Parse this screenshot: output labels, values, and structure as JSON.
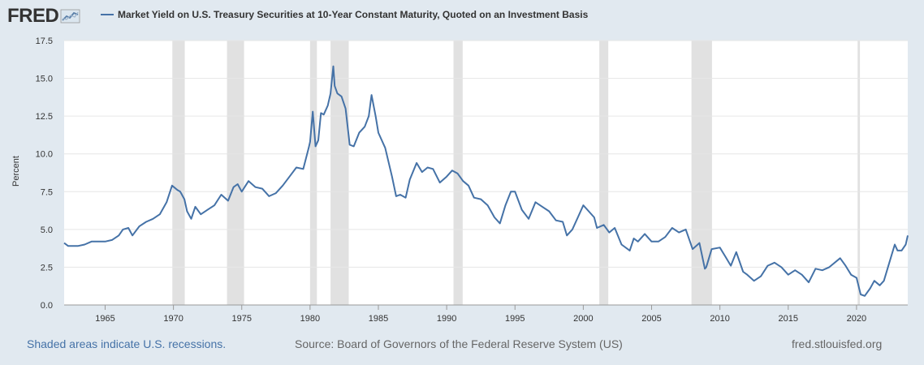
{
  "logo": {
    "text": "FRED",
    "icon": "chart-line-icon"
  },
  "colors": {
    "background": "#e1e9f0",
    "plot": "#ffffff",
    "line": "#4572a7",
    "recession": "#e1e1e1",
    "grid": "#e6e6e6",
    "text": "#333333"
  },
  "footer": {
    "recession_note": "Shaded areas indicate U.S. recessions.",
    "source": "Source: Board of Governors of the Federal Reserve System (US)",
    "site": "fred.stlouisfed.org"
  },
  "chart_data": {
    "type": "line",
    "title": "Market Yield on U.S. Treasury Securities at 10-Year Constant Maturity, Quoted on an Investment Basis",
    "xlabel": "",
    "ylabel": "Percent",
    "xlim": [
      1962.0,
      2023.75
    ],
    "ylim": [
      0,
      17.5
    ],
    "yticks": [
      0.0,
      2.5,
      5.0,
      7.5,
      10.0,
      12.5,
      15.0,
      17.5
    ],
    "ytick_labels": [
      "0.0",
      "2.5",
      "5.0",
      "7.5",
      "10.0",
      "12.5",
      "15.0",
      "17.5"
    ],
    "xticks": [
      1965,
      1970,
      1975,
      1980,
      1985,
      1990,
      1995,
      2000,
      2005,
      2010,
      2015,
      2020
    ],
    "grid": true,
    "legend": "top-left",
    "recessions": [
      [
        1969.92,
        1970.83
      ],
      [
        1973.92,
        1975.17
      ],
      [
        1980.0,
        1980.5
      ],
      [
        1981.5,
        1982.83
      ],
      [
        1990.5,
        1991.17
      ],
      [
        2001.17,
        2001.83
      ],
      [
        2007.92,
        2009.42
      ],
      [
        2020.08,
        2020.25
      ]
    ],
    "series": [
      {
        "name": "Market Yield on U.S. Treasury Securities at 10-Year Constant Maturity, Quoted on an Investment Basis",
        "x": [
          1962.0,
          1962.3,
          1962.7,
          1963.0,
          1963.5,
          1964.0,
          1964.5,
          1965.0,
          1965.5,
          1966.0,
          1966.3,
          1966.7,
          1967.0,
          1967.5,
          1968.0,
          1968.5,
          1969.0,
          1969.5,
          1969.9,
          1970.3,
          1970.5,
          1970.8,
          1971.0,
          1971.3,
          1971.6,
          1972.0,
          1972.5,
          1973.0,
          1973.5,
          1974.0,
          1974.4,
          1974.7,
          1975.0,
          1975.5,
          1976.0,
          1976.5,
          1977.0,
          1977.5,
          1978.0,
          1978.5,
          1979.0,
          1979.5,
          1979.9,
          1980.0,
          1980.2,
          1980.4,
          1980.6,
          1980.8,
          1981.0,
          1981.3,
          1981.5,
          1981.7,
          1981.8,
          1982.0,
          1982.3,
          1982.6,
          1982.9,
          1983.2,
          1983.6,
          1984.0,
          1984.3,
          1984.5,
          1984.8,
          1985.0,
          1985.5,
          1986.0,
          1986.3,
          1986.6,
          1987.0,
          1987.3,
          1987.8,
          1988.2,
          1988.6,
          1989.0,
          1989.5,
          1990.0,
          1990.4,
          1990.8,
          1991.2,
          1991.6,
          1992.0,
          1992.5,
          1993.0,
          1993.5,
          1993.9,
          1994.3,
          1994.7,
          1995.0,
          1995.5,
          1996.0,
          1996.5,
          1997.0,
          1997.5,
          1998.0,
          1998.5,
          1998.8,
          1999.2,
          1999.6,
          2000.0,
          2000.4,
          2000.8,
          2001.0,
          2001.5,
          2001.9,
          2002.3,
          2002.8,
          2003.4,
          2003.7,
          2004.0,
          2004.5,
          2005.0,
          2005.5,
          2006.0,
          2006.5,
          2007.0,
          2007.5,
          2008.0,
          2008.5,
          2008.9,
          2009.0,
          2009.4,
          2010.0,
          2010.4,
          2010.8,
          2011.2,
          2011.7,
          2012.0,
          2012.5,
          2013.0,
          2013.5,
          2014.0,
          2014.5,
          2015.0,
          2015.5,
          2016.0,
          2016.5,
          2017.0,
          2017.5,
          2018.0,
          2018.8,
          2019.2,
          2019.6,
          2020.0,
          2020.3,
          2020.6,
          2021.0,
          2021.3,
          2021.7,
          2022.0,
          2022.4,
          2022.8,
          2023.0,
          2023.3,
          2023.6,
          2023.75
        ],
        "values": [
          4.1,
          3.9,
          3.9,
          3.9,
          4.0,
          4.2,
          4.2,
          4.2,
          4.3,
          4.6,
          5.0,
          5.1,
          4.6,
          5.2,
          5.5,
          5.7,
          6.0,
          6.8,
          7.9,
          7.6,
          7.5,
          7.0,
          6.2,
          5.7,
          6.5,
          6.0,
          6.3,
          6.6,
          7.3,
          6.9,
          7.8,
          8.0,
          7.5,
          8.2,
          7.8,
          7.7,
          7.2,
          7.4,
          7.9,
          8.5,
          9.1,
          9.0,
          10.4,
          10.8,
          12.8,
          10.5,
          10.9,
          12.7,
          12.6,
          13.2,
          14.0,
          15.8,
          14.5,
          14.0,
          13.8,
          13.0,
          10.6,
          10.5,
          11.4,
          11.8,
          12.5,
          13.9,
          12.5,
          11.4,
          10.4,
          8.5,
          7.2,
          7.3,
          7.1,
          8.3,
          9.4,
          8.8,
          9.1,
          9.0,
          8.1,
          8.5,
          8.9,
          8.7,
          8.2,
          7.9,
          7.1,
          7.0,
          6.6,
          5.8,
          5.4,
          6.6,
          7.5,
          7.5,
          6.3,
          5.7,
          6.8,
          6.5,
          6.2,
          5.6,
          5.5,
          4.6,
          5.0,
          5.8,
          6.6,
          6.2,
          5.8,
          5.1,
          5.3,
          4.8,
          5.1,
          4.0,
          3.6,
          4.4,
          4.2,
          4.7,
          4.2,
          4.2,
          4.5,
          5.1,
          4.8,
          5.0,
          3.7,
          4.1,
          2.4,
          2.5,
          3.7,
          3.8,
          3.2,
          2.6,
          3.5,
          2.2,
          2.0,
          1.6,
          1.9,
          2.6,
          2.8,
          2.5,
          2.0,
          2.3,
          2.0,
          1.5,
          2.4,
          2.3,
          2.5,
          3.1,
          2.6,
          2.0,
          1.8,
          0.7,
          0.6,
          1.1,
          1.6,
          1.3,
          1.6,
          2.8,
          4.0,
          3.6,
          3.6,
          4.0,
          4.6
        ]
      }
    ]
  }
}
